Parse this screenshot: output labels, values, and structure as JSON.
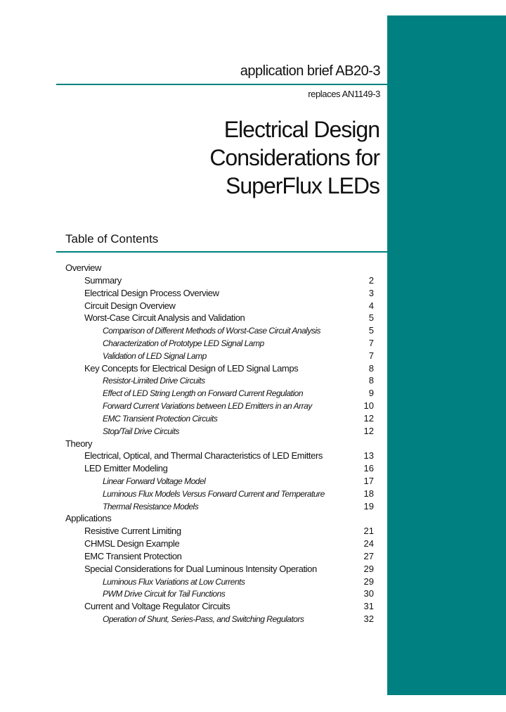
{
  "header": {
    "brief": "application brief AB20-3",
    "replaces": "replaces AN1149-3",
    "title_lines": [
      "Electrical Design",
      "Considerations for",
      "SuperFlux LEDs"
    ]
  },
  "toc": {
    "title": "Table of Contents",
    "sections": [
      {
        "heading": "Overview",
        "entries": [
          {
            "title": "Summary",
            "page": 2
          },
          {
            "title": "Electrical Design Process Overview",
            "page": 3
          },
          {
            "title": "Circuit Design Overview",
            "page": 4
          },
          {
            "title": "Worst-Case Circuit Analysis and Validation",
            "page": 5,
            "subentries": [
              {
                "title": "Comparison of Different Methods of Worst-Case Circuit Analysis",
                "page": 5
              },
              {
                "title": "Characterization of Prototype LED Signal Lamp",
                "page": 7
              },
              {
                "title": "Validation of LED Signal Lamp",
                "page": 7
              }
            ]
          },
          {
            "title": "Key Concepts for Electrical Design of LED Signal Lamps",
            "page": 8,
            "subentries": [
              {
                "title": "Resistor-Limited Drive Circuits",
                "page": 8
              },
              {
                "title": "Effect of LED String Length on Forward Current Regulation",
                "page": 9
              },
              {
                "title": "Forward Current Variations between LED Emitters in an Array",
                "page": 10
              },
              {
                "title": "EMC Transient Protection Circuits",
                "page": 12
              },
              {
                "title": "Stop/Tail Drive Circuits",
                "page": 12
              }
            ]
          }
        ]
      },
      {
        "heading": "Theory",
        "entries": [
          {
            "title": "Electrical, Optical, and Thermal Characteristics of LED Emitters",
            "page": 13
          },
          {
            "title": "LED Emitter Modeling",
            "page": 16,
            "subentries": [
              {
                "title": "Linear Forward Voltage Model",
                "page": 17
              },
              {
                "title": "Luminous Flux Models Versus Forward Current and Temperature",
                "page": 18
              },
              {
                "title": "Thermal Resistance Models",
                "page": 19
              }
            ]
          }
        ]
      },
      {
        "heading": "Applications",
        "entries": [
          {
            "title": "Resistive Current Limiting",
            "page": 21
          },
          {
            "title": "CHMSL Design Example",
            "page": 24
          },
          {
            "title": "EMC Transient Protection",
            "page": 27
          },
          {
            "title": "Special Considerations for Dual Luminous Intensity Operation",
            "page": 29,
            "subentries": [
              {
                "title": "Luminous Flux Variations at Low Currents",
                "page": 29
              },
              {
                "title": "PWM Drive Circuit for Tail Functions",
                "page": 30
              }
            ]
          },
          {
            "title": "Current and Voltage Regulator Circuits",
            "page": 31,
            "subentries": [
              {
                "title": "Operation of Shunt, Series-Pass, and Switching Regulators",
                "page": 32
              }
            ]
          }
        ]
      }
    ]
  }
}
